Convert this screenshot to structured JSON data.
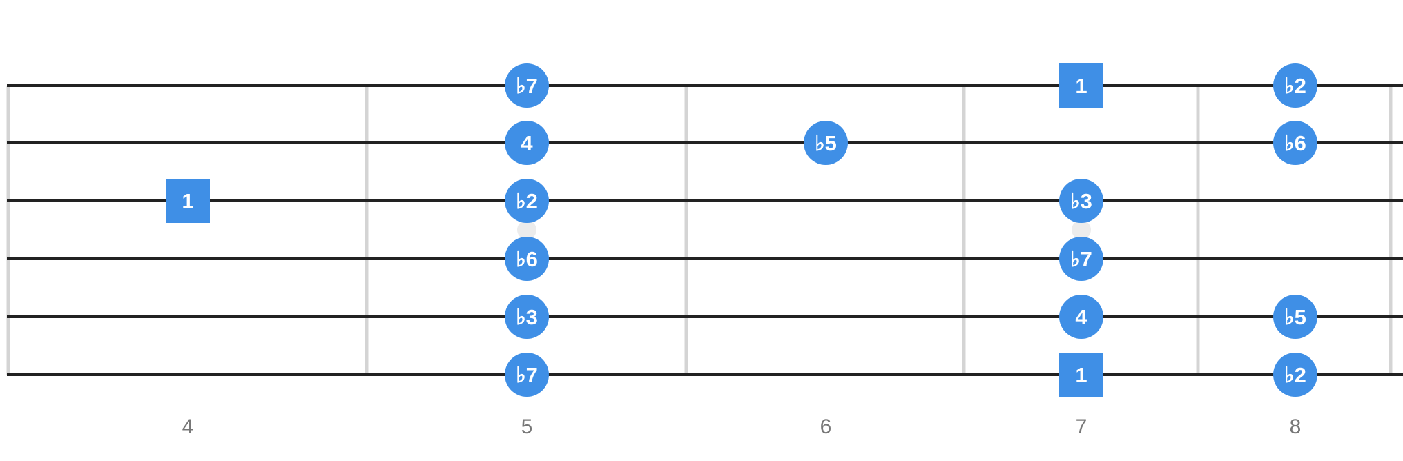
{
  "diagram": {
    "type": "guitar-scale-fretboard",
    "colors": {
      "background": "#ffffff",
      "string": "#222222",
      "fret": "#d4d4d4",
      "inlay": "#ececec",
      "note_fill": "#3f8fe6",
      "note_text": "#ffffff",
      "fret_number_text": "#777777"
    },
    "strings_count": 6,
    "fret_numbers": [
      "4",
      "5",
      "6",
      "7",
      "8"
    ],
    "inlay_frets": [
      5,
      7
    ],
    "notes": [
      {
        "string": 1,
        "fret": 5,
        "label": "♭7",
        "shape": "circle"
      },
      {
        "string": 1,
        "fret": 7,
        "label": "1",
        "shape": "square"
      },
      {
        "string": 1,
        "fret": 8,
        "label": "♭2",
        "shape": "circle"
      },
      {
        "string": 2,
        "fret": 5,
        "label": "4",
        "shape": "circle"
      },
      {
        "string": 2,
        "fret": 6,
        "label": "♭5",
        "shape": "circle"
      },
      {
        "string": 2,
        "fret": 8,
        "label": "♭6",
        "shape": "circle"
      },
      {
        "string": 3,
        "fret": 4,
        "label": "1",
        "shape": "square"
      },
      {
        "string": 3,
        "fret": 5,
        "label": "♭2",
        "shape": "circle"
      },
      {
        "string": 3,
        "fret": 7,
        "label": "♭3",
        "shape": "circle"
      },
      {
        "string": 4,
        "fret": 5,
        "label": "♭6",
        "shape": "circle"
      },
      {
        "string": 4,
        "fret": 7,
        "label": "♭7",
        "shape": "circle"
      },
      {
        "string": 5,
        "fret": 5,
        "label": "♭3",
        "shape": "circle"
      },
      {
        "string": 5,
        "fret": 7,
        "label": "4",
        "shape": "circle"
      },
      {
        "string": 5,
        "fret": 8,
        "label": "♭5",
        "shape": "circle"
      },
      {
        "string": 6,
        "fret": 5,
        "label": "♭7",
        "shape": "circle"
      },
      {
        "string": 6,
        "fret": 7,
        "label": "1",
        "shape": "square"
      },
      {
        "string": 6,
        "fret": 8,
        "label": "♭2",
        "shape": "circle"
      }
    ]
  }
}
